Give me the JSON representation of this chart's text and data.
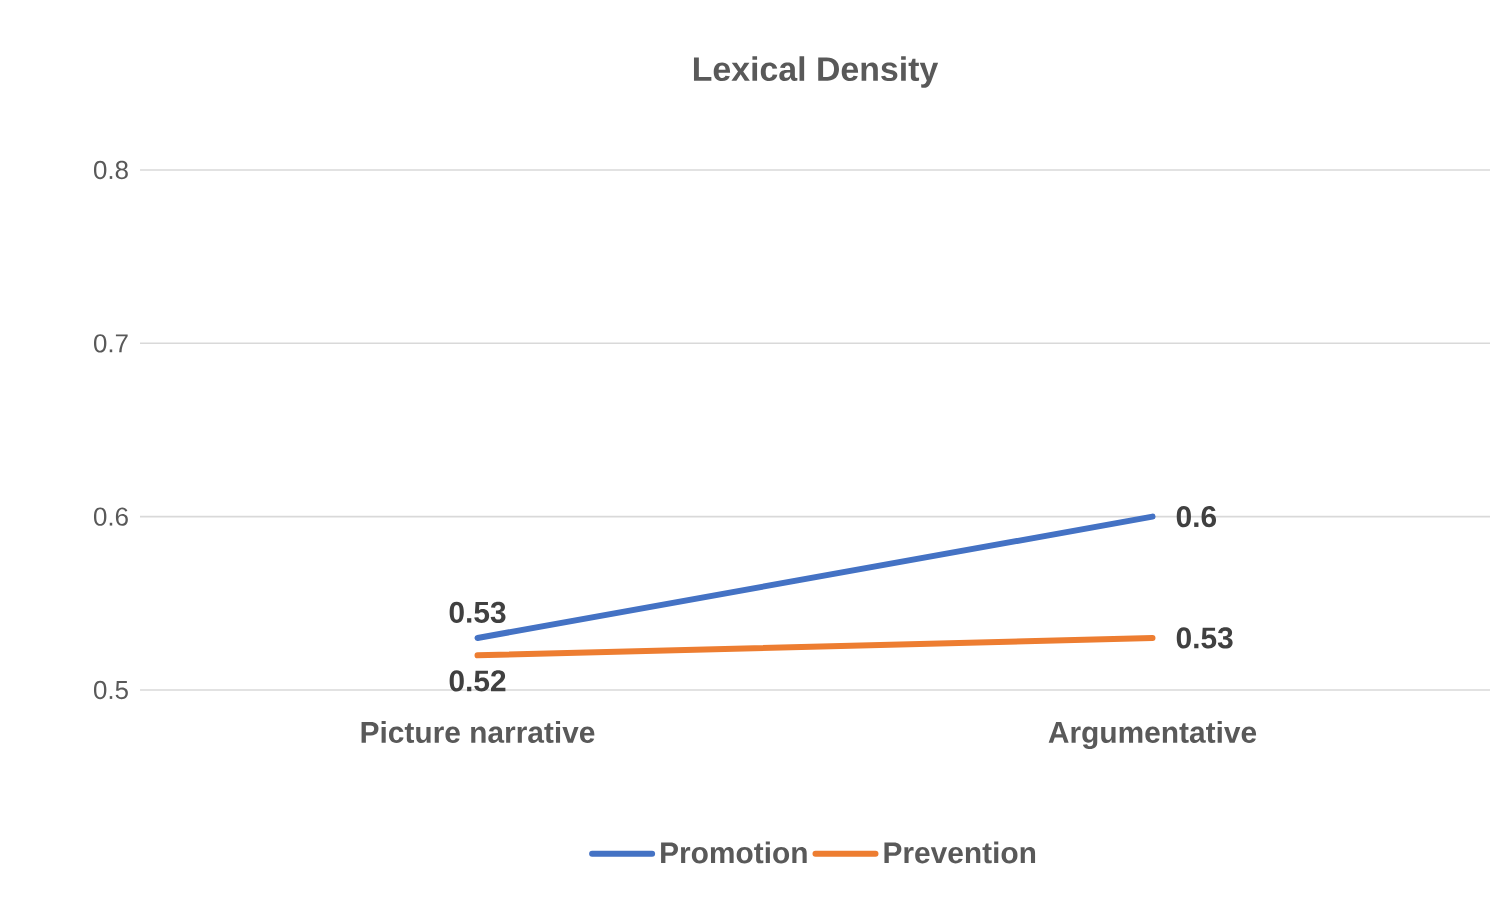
{
  "chart_data": {
    "type": "line",
    "title": "Lexical Density",
    "categories": [
      "Picture narrative",
      "Argumentative"
    ],
    "series": [
      {
        "name": "Promotion",
        "color": "#4472c4",
        "values": [
          0.53,
          0.6
        ]
      },
      {
        "name": "Prevention",
        "color": "#ed7d31",
        "values": [
          0.52,
          0.53
        ]
      }
    ],
    "ylim": [
      0.5,
      0.8
    ],
    "yticks": [
      0.5,
      0.6,
      0.7,
      0.8
    ],
    "grid": "y",
    "legend": "bottom",
    "data_labels": true,
    "marker": "none",
    "line_style": "solid"
  }
}
